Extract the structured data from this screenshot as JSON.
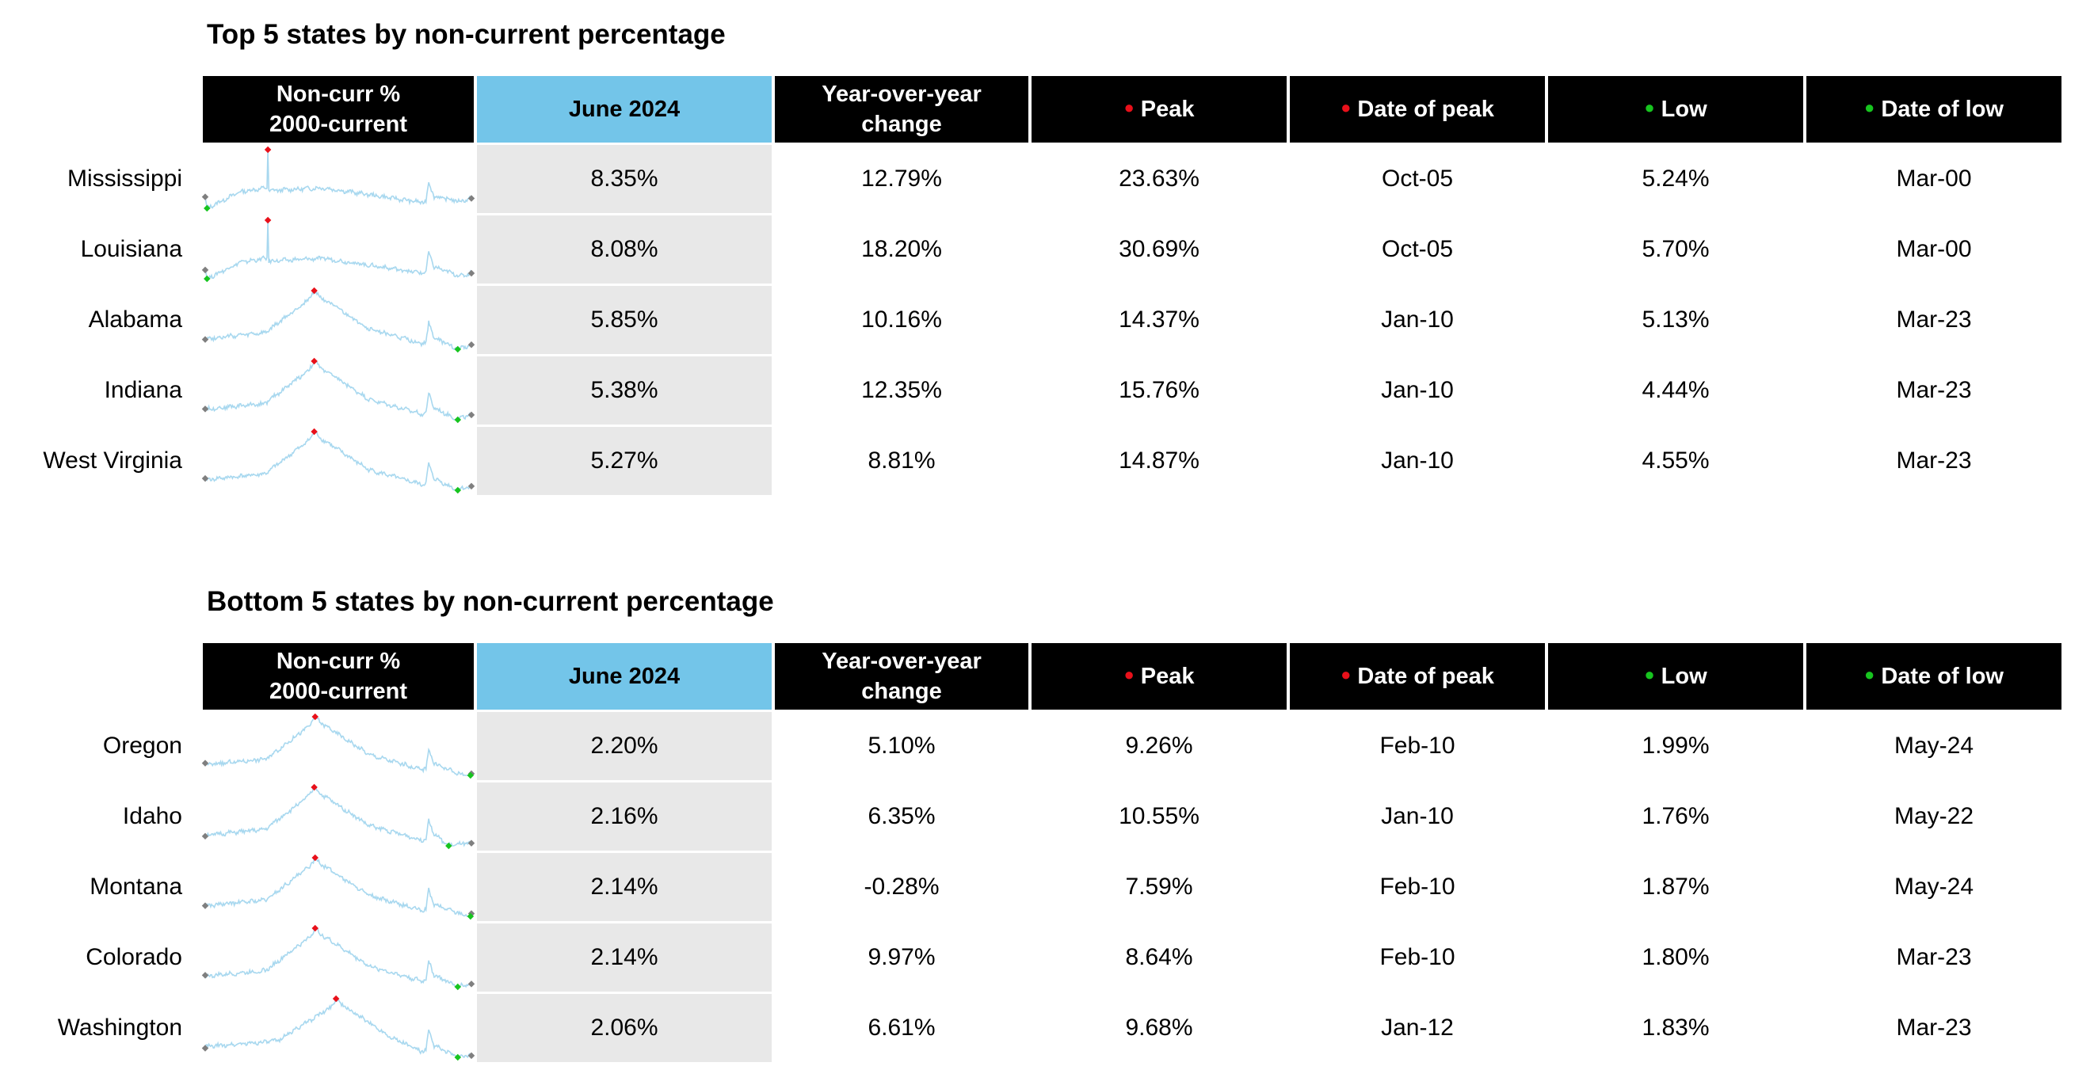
{
  "headers": {
    "spark_line1": "Non-curr %",
    "spark_line2": "2000-current",
    "current": "June 2024",
    "yoy_line1": "Year-over-year",
    "yoy_line2": "change",
    "peak": "Peak",
    "date_of_peak": "Date of peak",
    "low": "Low",
    "date_of_low": "Date of low"
  },
  "colors": {
    "header_bg": "#000000",
    "selected_header_bg": "#73c5e9",
    "shaded_cell": "#e8e8e8",
    "sparkline": "#a8d8ef",
    "peak_marker": "#e8101a",
    "low_marker": "#17c41f",
    "endpoint_marker": "#7f7f7f"
  },
  "chart_data": [
    {
      "type": "table",
      "title": "Top 5 states by non-current percentage",
      "columns": [
        "Non-curr % 2000-current",
        "June 2024",
        "Year-over-year change",
        "Peak",
        "Date of peak",
        "Low",
        "Date of low"
      ],
      "rows": [
        {
          "state": "Mississippi",
          "june_2024": "8.35%",
          "yoy": "12.79%",
          "peak": "23.63%",
          "peak_date": "Oct-05",
          "low": "5.24%",
          "low_date": "Mar-00"
        },
        {
          "state": "Louisiana",
          "june_2024": "8.08%",
          "yoy": "18.20%",
          "peak": "30.69%",
          "peak_date": "Oct-05",
          "low": "5.70%",
          "low_date": "Mar-00"
        },
        {
          "state": "Alabama",
          "june_2024": "5.85%",
          "yoy": "10.16%",
          "peak": "14.37%",
          "peak_date": "Jan-10",
          "low": "5.13%",
          "low_date": "Mar-23"
        },
        {
          "state": "Indiana",
          "june_2024": "5.38%",
          "yoy": "12.35%",
          "peak": "15.76%",
          "peak_date": "Jan-10",
          "low": "4.44%",
          "low_date": "Mar-23"
        },
        {
          "state": "West Virginia",
          "june_2024": "5.27%",
          "yoy": "8.81%",
          "peak": "14.87%",
          "peak_date": "Jan-10",
          "low": "4.55%",
          "low_date": "Mar-23"
        }
      ]
    },
    {
      "type": "table",
      "title": "Bottom 5 states by non-current percentage",
      "columns": [
        "Non-curr % 2000-current",
        "June 2024",
        "Year-over-year change",
        "Peak",
        "Date of peak",
        "Low",
        "Date of low"
      ],
      "rows": [
        {
          "state": "Oregon",
          "june_2024": "2.20%",
          "yoy": "5.10%",
          "peak": "9.26%",
          "peak_date": "Feb-10",
          "low": "1.99%",
          "low_date": "May-24"
        },
        {
          "state": "Idaho",
          "june_2024": "2.16%",
          "yoy": "6.35%",
          "peak": "10.55%",
          "peak_date": "Jan-10",
          "low": "1.76%",
          "low_date": "May-22"
        },
        {
          "state": "Montana",
          "june_2024": "2.14%",
          "yoy": "-0.28%",
          "peak": "7.59%",
          "peak_date": "Feb-10",
          "low": "1.87%",
          "low_date": "May-24"
        },
        {
          "state": "Colorado",
          "june_2024": "2.14%",
          "yoy": "9.97%",
          "peak": "8.64%",
          "peak_date": "Feb-10",
          "low": "1.80%",
          "low_date": "Mar-23"
        },
        {
          "state": "Washington",
          "june_2024": "2.06%",
          "yoy": "6.61%",
          "peak": "9.68%",
          "peak_date": "Jan-12",
          "low": "1.83%",
          "low_date": "Mar-23"
        }
      ]
    }
  ]
}
